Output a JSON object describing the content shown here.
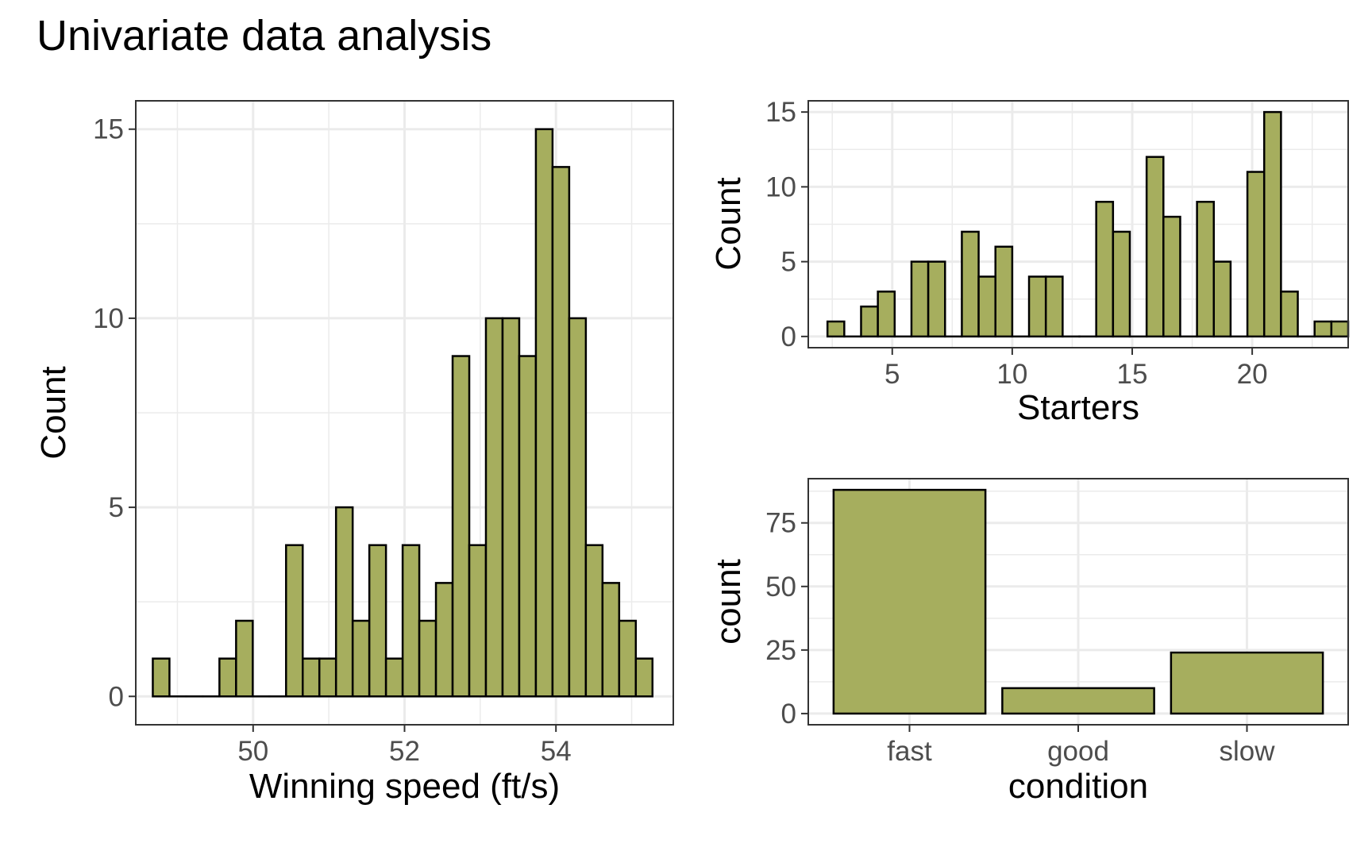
{
  "title": "Univariate data analysis",
  "colors": {
    "bar_fill": "#a6ae5e",
    "bar_stroke": "#000000",
    "grid": "#ebebeb",
    "panel_border": "#333333",
    "tick_text": "#4d4d4d"
  },
  "chart_data": [
    {
      "id": "speed",
      "type": "bar",
      "subtype": "histogram",
      "xlabel": "Winning speed (ft/s)",
      "ylabel": "Count",
      "xlim": [
        48.45,
        55.55
      ],
      "ylim": [
        -0.75,
        15.75
      ],
      "xticks": [
        50,
        52,
        54
      ],
      "yticks": [
        0,
        5,
        10,
        15
      ],
      "grid": true,
      "bins": {
        "start": 48.675,
        "width": 0.22
      },
      "values": [
        1,
        0,
        0,
        0,
        1,
        2,
        0,
        0,
        4,
        1,
        1,
        5,
        2,
        4,
        1,
        4,
        2,
        3,
        9,
        4,
        10,
        10,
        9,
        15,
        14,
        10,
        4,
        3,
        2,
        1
      ]
    },
    {
      "id": "starters",
      "type": "bar",
      "subtype": "histogram",
      "xlabel": "Starters",
      "ylabel": "Count",
      "xlim": [
        1.5,
        24.0
      ],
      "ylim": [
        -0.75,
        15.75
      ],
      "xticks": [
        5,
        10,
        15,
        20
      ],
      "yticks": [
        0,
        5,
        10,
        15
      ],
      "grid": true,
      "bins": {
        "start": 2.3,
        "width": 0.7
      },
      "values": [
        1,
        0,
        2,
        3,
        0,
        5,
        5,
        0,
        7,
        4,
        6,
        0,
        4,
        4,
        0,
        0,
        9,
        7,
        0,
        12,
        8,
        0,
        9,
        5,
        0,
        11,
        15,
        3,
        0,
        1,
        1
      ]
    },
    {
      "id": "condition",
      "type": "bar",
      "xlabel": "condition",
      "ylabel": "count",
      "categories": [
        "fast",
        "good",
        "slow"
      ],
      "values": [
        88,
        10,
        24
      ],
      "ylim": [
        -4.4,
        92.4
      ],
      "yticks": [
        0,
        25,
        50,
        75
      ],
      "grid": true
    }
  ]
}
